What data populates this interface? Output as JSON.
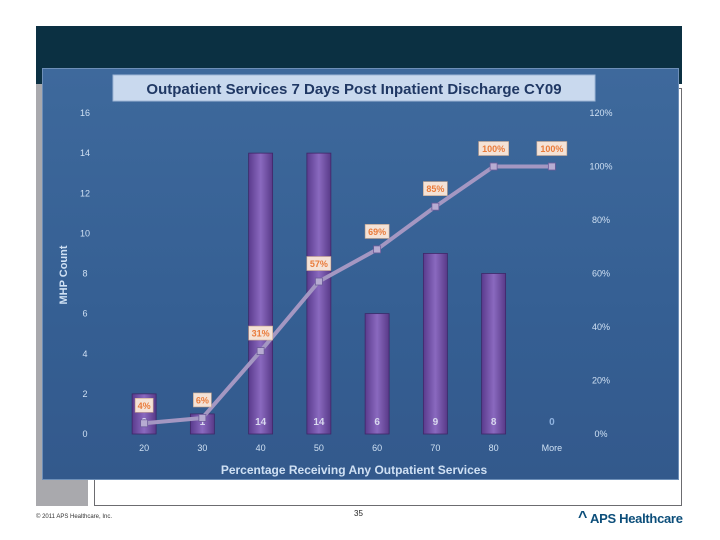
{
  "footer": {
    "copyright": "© 2011 APS Healthcare, Inc.",
    "page_number": "35",
    "brand_name": "APS Healthcare",
    "brand_mark": "^"
  },
  "chart_data": {
    "type": "bar",
    "title": "Outpatient Services 7 Days Post Inpatient Discharge CY09",
    "xlabel": "Percentage Receiving Any Outpatient Services",
    "ylabel": "MHP Count",
    "categories": [
      "20",
      "30",
      "40",
      "50",
      "60",
      "70",
      "80",
      "More"
    ],
    "ylim": [
      0,
      16
    ],
    "yticks": [
      "0",
      "2",
      "4",
      "6",
      "8",
      "10",
      "12",
      "14",
      "16"
    ],
    "y2lim": [
      0,
      120
    ],
    "y2ticks": [
      "0%",
      "20%",
      "40%",
      "60%",
      "80%",
      "100%",
      "120%"
    ],
    "series": [
      {
        "type": "bar",
        "values": [
          2,
          1,
          14,
          14,
          6,
          9,
          8,
          0
        ],
        "labels": [
          "2",
          "1",
          "14",
          "14",
          "6",
          "9",
          "8",
          "0"
        ]
      },
      {
        "type": "line",
        "axis": "right",
        "values": [
          4,
          6,
          31,
          57,
          69,
          85,
          100,
          100
        ],
        "labels": [
          "4%",
          "6%",
          "31%",
          "57%",
          "69%",
          "85%",
          "100%",
          "100%"
        ]
      }
    ],
    "colors": {
      "bar": "#6f4fa3",
      "line": "#a497c2",
      "label_text": "#e97b3b",
      "label_box": "#f4e2d6",
      "axis_text": "#cfe0f3",
      "title_text": "#203864",
      "title_box": "#c9d9ee"
    }
  }
}
